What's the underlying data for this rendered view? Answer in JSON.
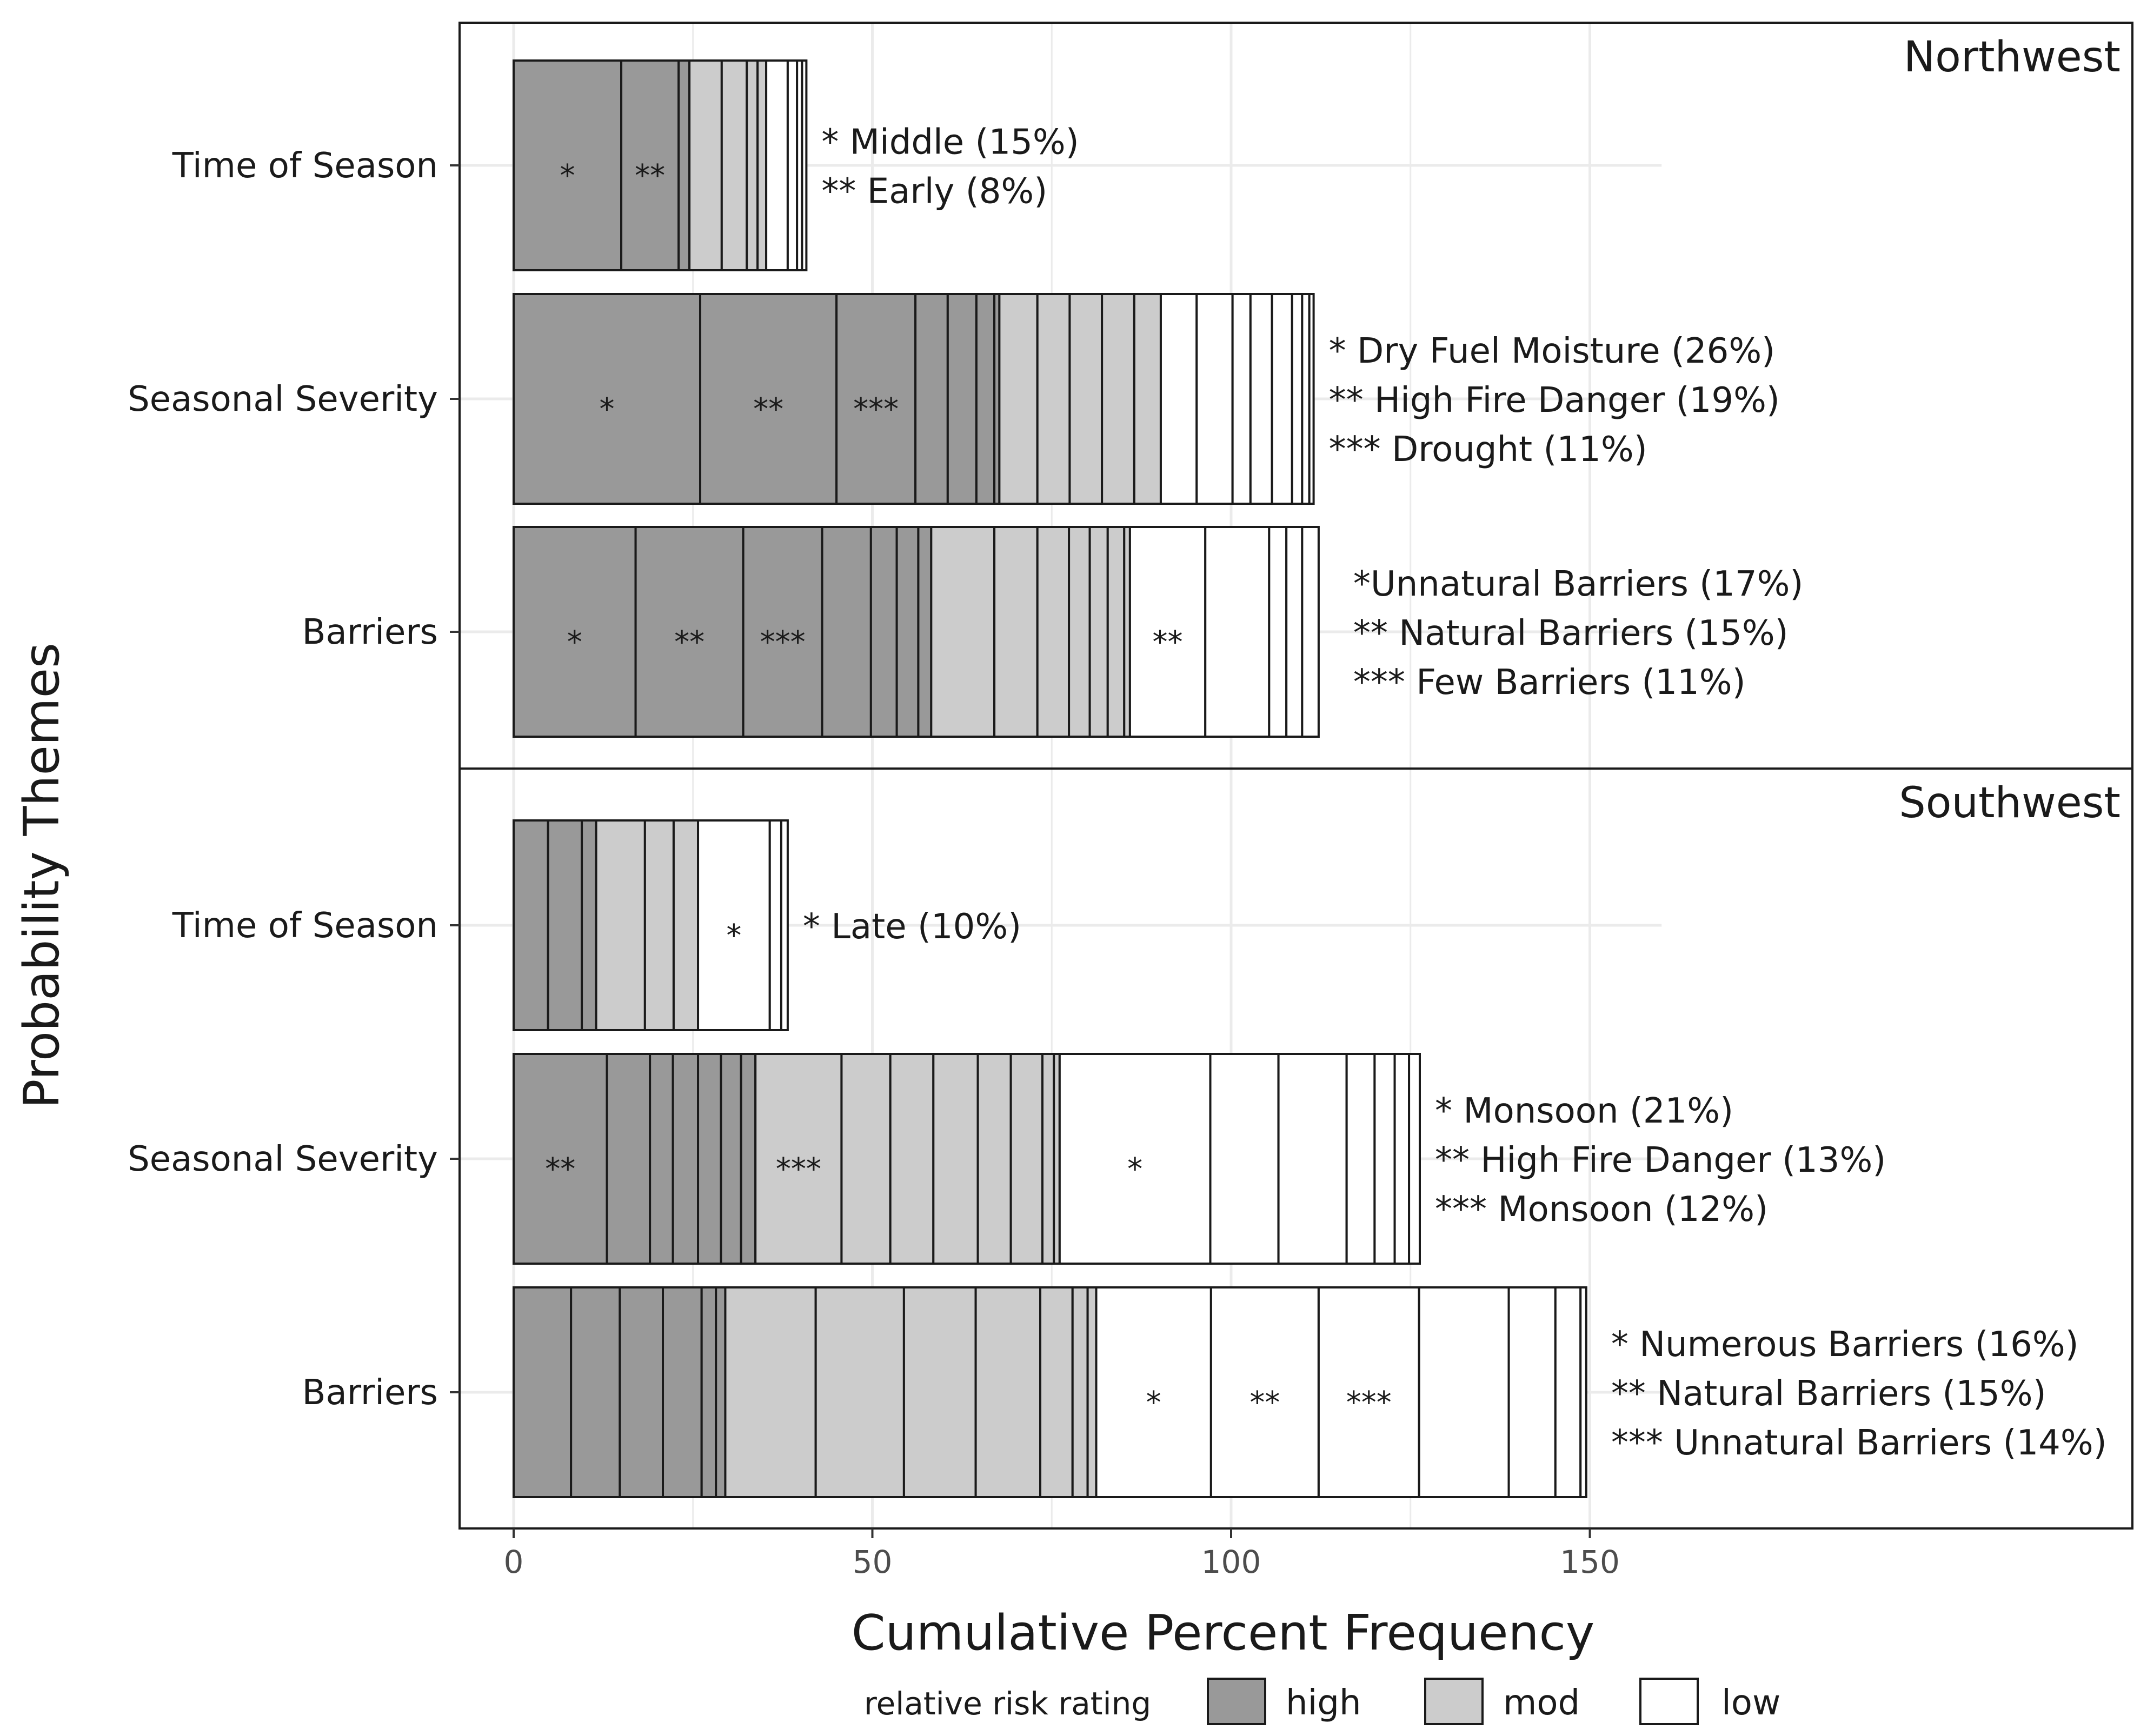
{
  "chart_data": {
    "type": "bar",
    "orientation": "horizontal",
    "stacked": true,
    "xlabel": "Cumulative Percent Frequency",
    "ylabel": "Probability Themes",
    "xlim": [
      -7,
      225
    ],
    "xticks": [
      0,
      50,
      100,
      150
    ],
    "grid": true,
    "legend": {
      "title": "relative risk rating",
      "placement": "bottom",
      "items": [
        {
          "label": "high",
          "color": "#999999"
        },
        {
          "label": "mod",
          "color": "#cccccc"
        },
        {
          "label": "low",
          "color": "#ffffff"
        }
      ]
    },
    "panels": [
      {
        "name": "Northwest",
        "bars": [
          {
            "category": "Time of Season",
            "segments": [
              {
                "value": 15,
                "rating": "high",
                "mark": "*"
              },
              {
                "value": 8,
                "rating": "high",
                "mark": "**"
              },
              {
                "value": 1.5,
                "rating": "high"
              },
              {
                "value": 4.5,
                "rating": "mod"
              },
              {
                "value": 3.5,
                "rating": "mod"
              },
              {
                "value": 1.5,
                "rating": "mod"
              },
              {
                "value": 1.2,
                "rating": "mod"
              },
              {
                "value": 3,
                "rating": "low"
              },
              {
                "value": 1.3,
                "rating": "low"
              },
              {
                "value": 0.7,
                "rating": "low"
              },
              {
                "value": 0.6,
                "rating": "low"
              }
            ],
            "annotations": [
              "* Middle (15%)",
              "** Early (8%)"
            ]
          },
          {
            "category": "Seasonal Severity",
            "segments": [
              {
                "value": 26,
                "rating": "high",
                "mark": "*"
              },
              {
                "value": 19,
                "rating": "high",
                "mark": "**"
              },
              {
                "value": 11,
                "rating": "high",
                "mark": "***"
              },
              {
                "value": 4.5,
                "rating": "high"
              },
              {
                "value": 4,
                "rating": "high"
              },
              {
                "value": 2.5,
                "rating": "high"
              },
              {
                "value": 0.7,
                "rating": "high"
              },
              {
                "value": 5.3,
                "rating": "mod"
              },
              {
                "value": 4.5,
                "rating": "mod"
              },
              {
                "value": 4.5,
                "rating": "mod"
              },
              {
                "value": 4.5,
                "rating": "mod"
              },
              {
                "value": 3.7,
                "rating": "mod"
              },
              {
                "value": 5,
                "rating": "low"
              },
              {
                "value": 5,
                "rating": "low"
              },
              {
                "value": 2.5,
                "rating": "low"
              },
              {
                "value": 3,
                "rating": "low"
              },
              {
                "value": 2.8,
                "rating": "low"
              },
              {
                "value": 1.4,
                "rating": "low"
              },
              {
                "value": 1,
                "rating": "low"
              },
              {
                "value": 0.6,
                "rating": "low"
              }
            ],
            "annotations": [
              "* Dry Fuel Moisture (26%)",
              "** High Fire Danger (19%)",
              "*** Drought (11%)"
            ]
          },
          {
            "category": "Barriers",
            "segments": [
              {
                "value": 17,
                "rating": "high",
                "mark": "*"
              },
              {
                "value": 15,
                "rating": "high",
                "mark": "**"
              },
              {
                "value": 11,
                "rating": "high",
                "mark": "***"
              },
              {
                "value": 6.8,
                "rating": "high"
              },
              {
                "value": 3.6,
                "rating": "high"
              },
              {
                "value": 3,
                "rating": "high"
              },
              {
                "value": 1.8,
                "rating": "high"
              },
              {
                "value": 8.8,
                "rating": "mod"
              },
              {
                "value": 6,
                "rating": "mod"
              },
              {
                "value": 4.4,
                "rating": "mod"
              },
              {
                "value": 2.9,
                "rating": "mod"
              },
              {
                "value": 2.5,
                "rating": "mod"
              },
              {
                "value": 2.3,
                "rating": "mod"
              },
              {
                "value": 0.8,
                "rating": "mod"
              },
              {
                "value": 10.5,
                "rating": "low",
                "mark": "**"
              },
              {
                "value": 8.9,
                "rating": "low"
              },
              {
                "value": 2.4,
                "rating": "low"
              },
              {
                "value": 2.2,
                "rating": "low"
              },
              {
                "value": 2.3,
                "rating": "low"
              }
            ],
            "annotations": [
              "*Unnatural Barriers (17%)",
              "** Natural Barriers (15%)",
              "*** Few Barriers (11%)"
            ]
          }
        ]
      },
      {
        "name": "Southwest",
        "bars": [
          {
            "category": "Time of Season",
            "segments": [
              {
                "value": 4.8,
                "rating": "high"
              },
              {
                "value": 4.7,
                "rating": "high"
              },
              {
                "value": 2,
                "rating": "high"
              },
              {
                "value": 6.8,
                "rating": "mod"
              },
              {
                "value": 4,
                "rating": "mod"
              },
              {
                "value": 3.4,
                "rating": "mod"
              },
              {
                "value": 10,
                "rating": "low",
                "mark": "*"
              },
              {
                "value": 1.6,
                "rating": "low"
              },
              {
                "value": 0.9,
                "rating": "low"
              }
            ],
            "annotations": [
              "* Late (10%)"
            ]
          },
          {
            "category": "Seasonal Severity",
            "segments": [
              {
                "value": 13,
                "rating": "high",
                "mark": "**"
              },
              {
                "value": 6,
                "rating": "high"
              },
              {
                "value": 3.2,
                "rating": "high"
              },
              {
                "value": 3.5,
                "rating": "high"
              },
              {
                "value": 3.2,
                "rating": "high"
              },
              {
                "value": 2.8,
                "rating": "high"
              },
              {
                "value": 2,
                "rating": "high"
              },
              {
                "value": 12,
                "rating": "mod",
                "mark": "***"
              },
              {
                "value": 6.8,
                "rating": "mod"
              },
              {
                "value": 6,
                "rating": "mod"
              },
              {
                "value": 6.2,
                "rating": "mod"
              },
              {
                "value": 4.6,
                "rating": "mod"
              },
              {
                "value": 4.4,
                "rating": "mod"
              },
              {
                "value": 1.6,
                "rating": "mod"
              },
              {
                "value": 0.8,
                "rating": "mod"
              },
              {
                "value": 21,
                "rating": "low",
                "mark": "*"
              },
              {
                "value": 9.5,
                "rating": "low"
              },
              {
                "value": 9.5,
                "rating": "low"
              },
              {
                "value": 3.9,
                "rating": "low"
              },
              {
                "value": 2.8,
                "rating": "low"
              },
              {
                "value": 2,
                "rating": "low"
              },
              {
                "value": 1.5,
                "rating": "low"
              }
            ],
            "annotations": [
              "* Monsoon (21%)",
              "** High Fire Danger (13%)",
              "*** Monsoon (12%)"
            ]
          },
          {
            "category": "Barriers",
            "segments": [
              {
                "value": 8,
                "rating": "high"
              },
              {
                "value": 6.8,
                "rating": "high"
              },
              {
                "value": 6,
                "rating": "high"
              },
              {
                "value": 5.4,
                "rating": "high"
              },
              {
                "value": 2,
                "rating": "high"
              },
              {
                "value": 1.3,
                "rating": "high"
              },
              {
                "value": 12.6,
                "rating": "mod"
              },
              {
                "value": 12.3,
                "rating": "mod"
              },
              {
                "value": 10,
                "rating": "mod"
              },
              {
                "value": 9,
                "rating": "mod"
              },
              {
                "value": 4.5,
                "rating": "mod"
              },
              {
                "value": 2.1,
                "rating": "mod"
              },
              {
                "value": 1.2,
                "rating": "mod"
              },
              {
                "value": 16,
                "rating": "low",
                "mark": "*"
              },
              {
                "value": 15,
                "rating": "low",
                "mark": "**"
              },
              {
                "value": 14,
                "rating": "low",
                "mark": "***"
              },
              {
                "value": 12.5,
                "rating": "low"
              },
              {
                "value": 6.5,
                "rating": "low"
              },
              {
                "value": 3.5,
                "rating": "low"
              },
              {
                "value": 0.8,
                "rating": "low"
              }
            ],
            "annotations": [
              "* Numerous Barriers (16%)",
              "** Natural Barriers (15%)",
              "*** Unnatural Barriers (14%)"
            ]
          }
        ]
      }
    ]
  }
}
